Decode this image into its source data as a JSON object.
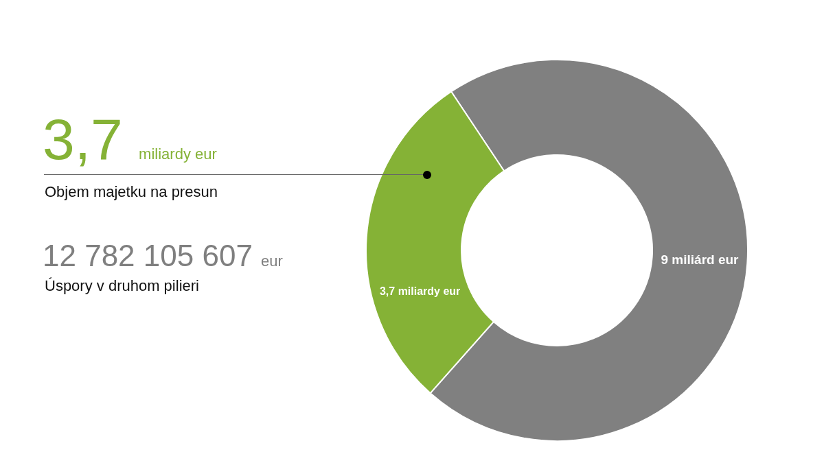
{
  "chart_data": {
    "type": "donut",
    "categories": [
      null,
      null
    ],
    "values": [
      9,
      3.7
    ],
    "colors": [
      "#808080",
      "#85b236"
    ],
    "value_labels": [
      "9 miliárd eur",
      "3,7 miliardy eur"
    ],
    "legend": false,
    "annotations": [
      "3,7 miliardy eur",
      "Objem majetku na presun",
      "12 782 105 607 eur",
      "Úspory v druhom pilieri"
    ]
  }
}
